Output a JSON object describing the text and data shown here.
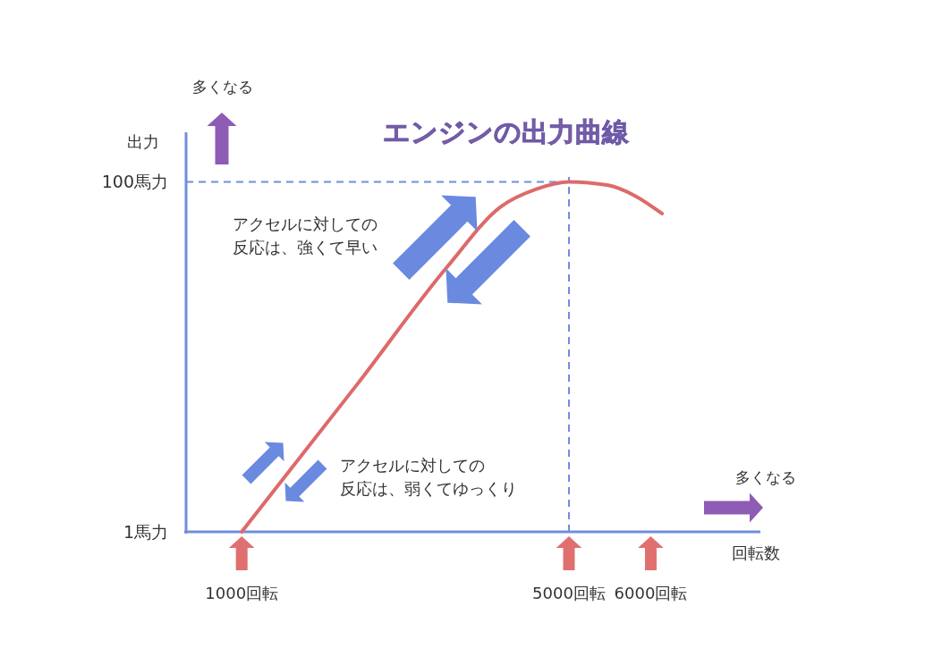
{
  "chart_data": {
    "type": "line",
    "title": "エンジンの出力曲線",
    "xlabel": "回転数",
    "ylabel": "出力",
    "x": [
      1000,
      2421,
      3514,
      4169,
      4607,
      5000,
      5481,
      5809,
      6137
    ],
    "series": [
      {
        "color": "#dd6a6a",
        "values": [
          1,
          43,
          76,
          93,
          98,
          100,
          99,
          96,
          91
        ]
      }
    ],
    "xlim": [
      320,
      7340
    ],
    "ylim": [
      1,
      114
    ],
    "xticks": [
      {
        "value": 1000,
        "label": "1000回転"
      },
      {
        "value": 5000,
        "label": "5000回転"
      },
      {
        "value": 6000,
        "label": "6000回転"
      }
    ],
    "yticks": [
      {
        "value": 1,
        "label": "1馬力"
      },
      {
        "value": 100,
        "label": "100馬力"
      }
    ],
    "ref_lines": [
      {
        "axis": "y",
        "value": 100,
        "color": "#6f8fdc",
        "line_style": "dashed"
      },
      {
        "axis": "x",
        "value": 5000,
        "color": "#6f8fdc",
        "line_style": "dashed"
      }
    ],
    "annotations": [
      "多くなる",
      "多くなる",
      "アクセルに対しての",
      "反応は、強くて早い",
      "アクセルに対しての",
      "反応は、弱くてゆっくり"
    ],
    "grid": false,
    "marker": "none",
    "line_style": "solid"
  }
}
